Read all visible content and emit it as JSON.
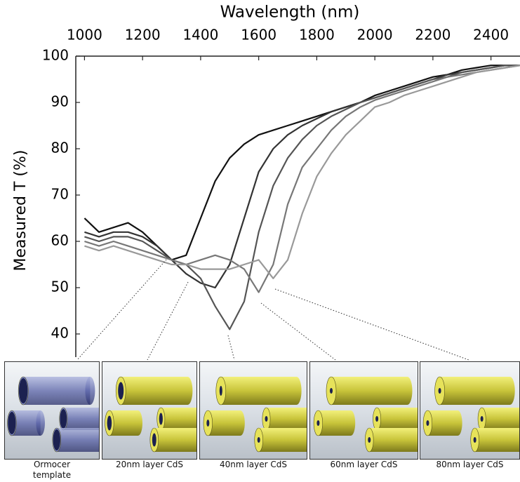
{
  "chart_data": {
    "type": "line",
    "x_label": "Wavelength (nm)",
    "y_label": "Measured T (%)",
    "x": [
      1000,
      1050,
      1100,
      1150,
      1200,
      1250,
      1300,
      1350,
      1400,
      1450,
      1500,
      1550,
      1600,
      1650,
      1700,
      1750,
      1800,
      1850,
      1900,
      1950,
      2000,
      2050,
      2100,
      2150,
      2200,
      2250,
      2300,
      2350,
      2400,
      2450,
      2500
    ],
    "xlim": [
      970,
      2500
    ],
    "xticks": [
      1000,
      1200,
      1400,
      1600,
      1800,
      2000,
      2200,
      2400
    ],
    "ylim": [
      35,
      100
    ],
    "yticks": [
      40,
      50,
      60,
      70,
      80,
      90,
      100
    ],
    "series": [
      {
        "name": "Ormocer template",
        "color": "#111111",
        "values": [
          65,
          62,
          63,
          64,
          62,
          59,
          56,
          57,
          65,
          73,
          78,
          81,
          83,
          84,
          85,
          86,
          87,
          88,
          89,
          90,
          91.5,
          92.5,
          93.5,
          94.5,
          95.5,
          96,
          97,
          97.5,
          98,
          98,
          98
        ]
      },
      {
        "name": "20nm layer CdS",
        "color": "#333333",
        "values": [
          62,
          61,
          62,
          62,
          61,
          59,
          56,
          53,
          51,
          50,
          55,
          65,
          75,
          80,
          83,
          85,
          86.5,
          88,
          89,
          90,
          91,
          92,
          93,
          94,
          95,
          96,
          96.5,
          97,
          97.5,
          98,
          98
        ]
      },
      {
        "name": "40nm layer CdS",
        "color": "#555555",
        "values": [
          61,
          60,
          61,
          61,
          60,
          58,
          56,
          55,
          52,
          46,
          41,
          47,
          62,
          72,
          78,
          82,
          85,
          87,
          88.5,
          90,
          91,
          92,
          93,
          94,
          95,
          95.5,
          96.5,
          97,
          97.5,
          98,
          98
        ]
      },
      {
        "name": "60nm layer CdS",
        "color": "#777777",
        "values": [
          60,
          59,
          60,
          59,
          58,
          57,
          56,
          55,
          56,
          57,
          56,
          54,
          49,
          55,
          68,
          76,
          80,
          84,
          87,
          89,
          90.5,
          91.5,
          92.5,
          93.5,
          94.5,
          95.5,
          96,
          96.5,
          97,
          97.5,
          98
        ]
      },
      {
        "name": "80nm layer CdS",
        "color": "#999999",
        "values": [
          59,
          58,
          59,
          58,
          57,
          56,
          55,
          55,
          54,
          54,
          54,
          55,
          56,
          52,
          56,
          66,
          74,
          79,
          83,
          86,
          89,
          90,
          91.5,
          92.5,
          93.5,
          94.5,
          95.5,
          96.5,
          97,
          97.5,
          98
        ]
      }
    ]
  }
}
